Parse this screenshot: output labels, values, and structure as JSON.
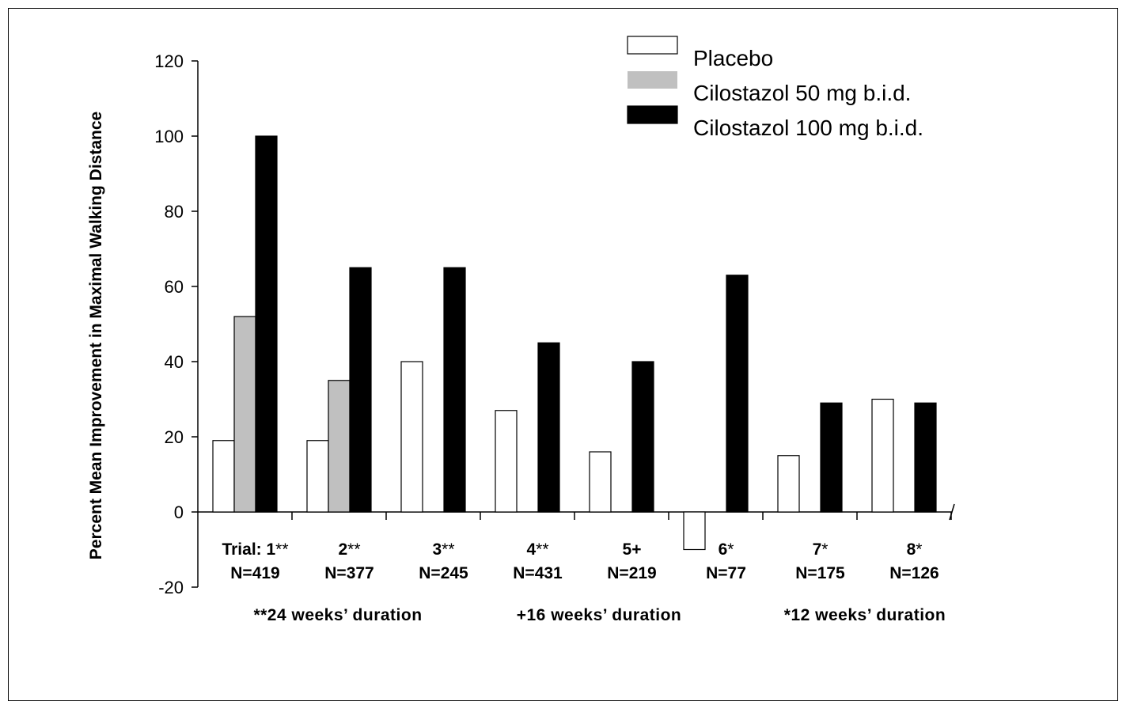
{
  "chart_data": {
    "type": "bar",
    "title": "",
    "xlabel": "",
    "ylabel": "Percent Mean Improvement in Maximal Walking Distance",
    "ylim": [
      -20,
      120
    ],
    "yticks": [
      "120",
      "100",
      "80",
      "60",
      "40",
      "20",
      "0",
      "-20"
    ],
    "ytick_values": [
      120,
      100,
      80,
      60,
      40,
      20,
      0,
      -20
    ],
    "categories": [
      {
        "trial": "Trial: 1",
        "mark": "**",
        "n": "N=419"
      },
      {
        "trial": "2",
        "mark": "**",
        "n": "N=377"
      },
      {
        "trial": "3",
        "mark": "**",
        "n": "N=245"
      },
      {
        "trial": "4",
        "mark": "**",
        "n": "N=431"
      },
      {
        "trial": "5+",
        "mark": "",
        "n": "N=219"
      },
      {
        "trial": "6",
        "mark": "*",
        "n": "N=77"
      },
      {
        "trial": "7",
        "mark": "*",
        "n": "N=175"
      },
      {
        "trial": "8",
        "mark": "*",
        "n": "N=126"
      }
    ],
    "series": [
      {
        "name": "Placebo",
        "color": "#ffffff",
        "values": [
          19,
          19,
          40,
          27,
          16,
          -10,
          15,
          30
        ]
      },
      {
        "name": "Cilostazol 50 mg b.i.d.",
        "color": "#c0c0c0",
        "values": [
          52,
          35,
          null,
          null,
          null,
          null,
          null,
          null
        ]
      },
      {
        "name": "Cilostazol 100 mg b.i.d.",
        "color": "#000000",
        "values": [
          100,
          65,
          65,
          45,
          40,
          63,
          29,
          29
        ]
      }
    ],
    "duration_labels": [
      "**24 weeks’ duration",
      "+16 weeks’ duration",
      "*12 weeks’ duration"
    ],
    "legend": "top-right",
    "grid": false
  }
}
